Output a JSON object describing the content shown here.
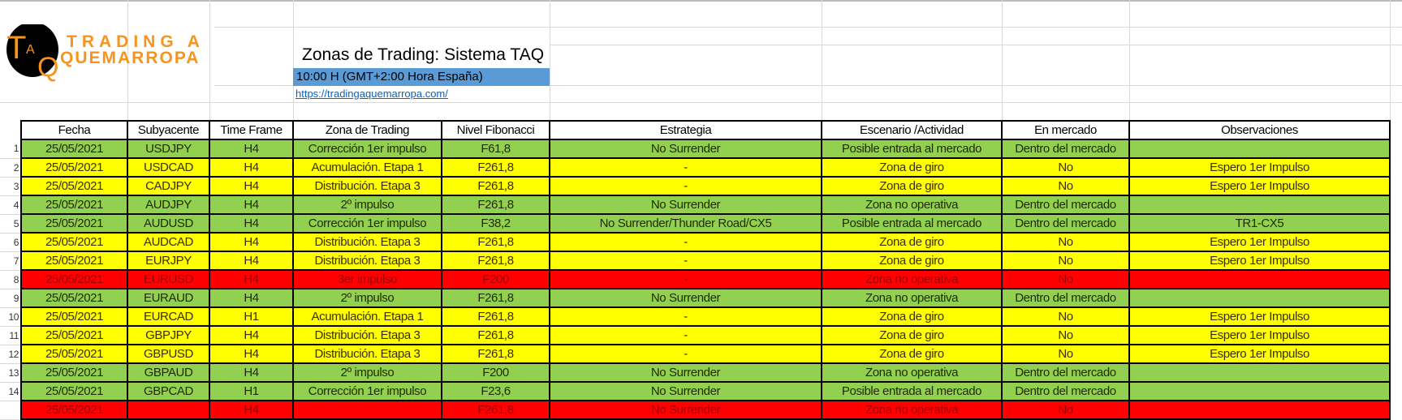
{
  "logo": {
    "text_line1": "TRADING A",
    "text_line2": "QUEMARROPA",
    "mark": "TAQ"
  },
  "title": "Zonas de Trading: Sistema TAQ",
  "time_note": "10:00 H (GMT+2:00 Hora España)",
  "link": "https://tradingaquemarropa.com/",
  "colors": {
    "green": "#92d050",
    "yellow": "#ffff00",
    "red": "#ff0000",
    "header_blue": "#5b9bd5"
  },
  "columns": [
    "Fecha",
    "Subyacente",
    "Time Frame",
    "Zona de Trading",
    "Nivel Fibonacci",
    "Estrategia",
    "Escenario /Actividad",
    "En mercado",
    "Observaciones"
  ],
  "rows": [
    {
      "n": "1",
      "status": "green",
      "cells": [
        "25/05/2021",
        "USDJPY",
        "H4",
        "Corrección 1er impulso",
        "F61,8",
        "No Surrender",
        "Posible entrada al mercado",
        "Dentro del mercado",
        ""
      ]
    },
    {
      "n": "2",
      "status": "yellow",
      "cells": [
        "25/05/2021",
        "USDCAD",
        "H4",
        "Acumulación. Etapa 1",
        "F261,8",
        "-",
        "Zona de giro",
        "No",
        "Espero 1er Impulso"
      ]
    },
    {
      "n": "3",
      "status": "yellow",
      "cells": [
        "25/05/2021",
        "CADJPY",
        "H4",
        "Distribución. Etapa 3",
        "F261,8",
        "-",
        "Zona de giro",
        "No",
        "Espero 1er Impulso"
      ]
    },
    {
      "n": "4",
      "status": "green",
      "cells": [
        "25/05/2021",
        "AUDJPY",
        "H4",
        "2º impulso",
        "F261,8",
        "No Surrender",
        "Zona no operativa",
        "Dentro del mercado",
        ""
      ]
    },
    {
      "n": "5",
      "status": "green",
      "cells": [
        "25/05/2021",
        "AUDUSD",
        "H4",
        "Corrección 1er impulso",
        "F38,2",
        "No Surrender/Thunder Road/CX5",
        "Posible entrada al mercado",
        "Dentro del mercado",
        "TR1-CX5"
      ]
    },
    {
      "n": "6",
      "status": "yellow",
      "cells": [
        "25/05/2021",
        "AUDCAD",
        "H4",
        "Distribución. Etapa 3",
        "F261,8",
        "-",
        "Zona de giro",
        "No",
        "Espero 1er Impulso"
      ]
    },
    {
      "n": "7",
      "status": "yellow",
      "cells": [
        "25/05/2021",
        "EURJPY",
        "H4",
        "Distribución. Etapa 3",
        "F261,8",
        "-",
        "Zona de giro",
        "No",
        "Espero 1er Impulso"
      ]
    },
    {
      "n": "8",
      "status": "red",
      "cells": [
        "25/05/2021",
        "EURUSD",
        "H4",
        "3er impulso",
        "F200",
        "-",
        "Zona no operativa",
        "No",
        ""
      ]
    },
    {
      "n": "9",
      "status": "green",
      "cells": [
        "25/05/2021",
        "EURAUD",
        "H4",
        "2º impulso",
        "F261,8",
        "No Surrender",
        "Zona no operativa",
        "Dentro del mercado",
        ""
      ]
    },
    {
      "n": "10",
      "status": "yellow",
      "cells": [
        "25/05/2021",
        "EURCAD",
        "H1",
        "Acumulación. Etapa 1",
        "F261,8",
        "-",
        "Zona de giro",
        "No",
        "Espero 1er Impulso"
      ]
    },
    {
      "n": "11",
      "status": "yellow",
      "cells": [
        "25/05/2021",
        "GBPJPY",
        "H4",
        "Distribución. Etapa 3",
        "F261,8",
        "-",
        "Zona de giro",
        "No",
        "Espero 1er Impulso"
      ]
    },
    {
      "n": "12",
      "status": "yellow",
      "cells": [
        "25/05/2021",
        "GBPUSD",
        "H4",
        "Distribución. Etapa 3",
        "F261,8",
        "-",
        "Zona de giro",
        "No",
        "Espero 1er Impulso"
      ]
    },
    {
      "n": "13",
      "status": "green",
      "cells": [
        "25/05/2021",
        "GBPAUD",
        "H4",
        "2º impulso",
        "F200",
        "No Surrender",
        "Zona no operativa",
        "Dentro del mercado",
        ""
      ]
    },
    {
      "n": "14",
      "status": "green",
      "cells": [
        "25/05/2021",
        "GBPCAD",
        "H1",
        "Corrección 1er impulso",
        "F23,6",
        "No Surrender",
        "Posible entrada al mercado",
        "Dentro del mercado",
        ""
      ]
    },
    {
      "n": "",
      "status": "red",
      "cells": [
        "25/05/2021",
        "",
        "H4",
        "",
        "F261,8",
        "No Surrender",
        "Zona no operativa",
        "No",
        ""
      ]
    }
  ]
}
